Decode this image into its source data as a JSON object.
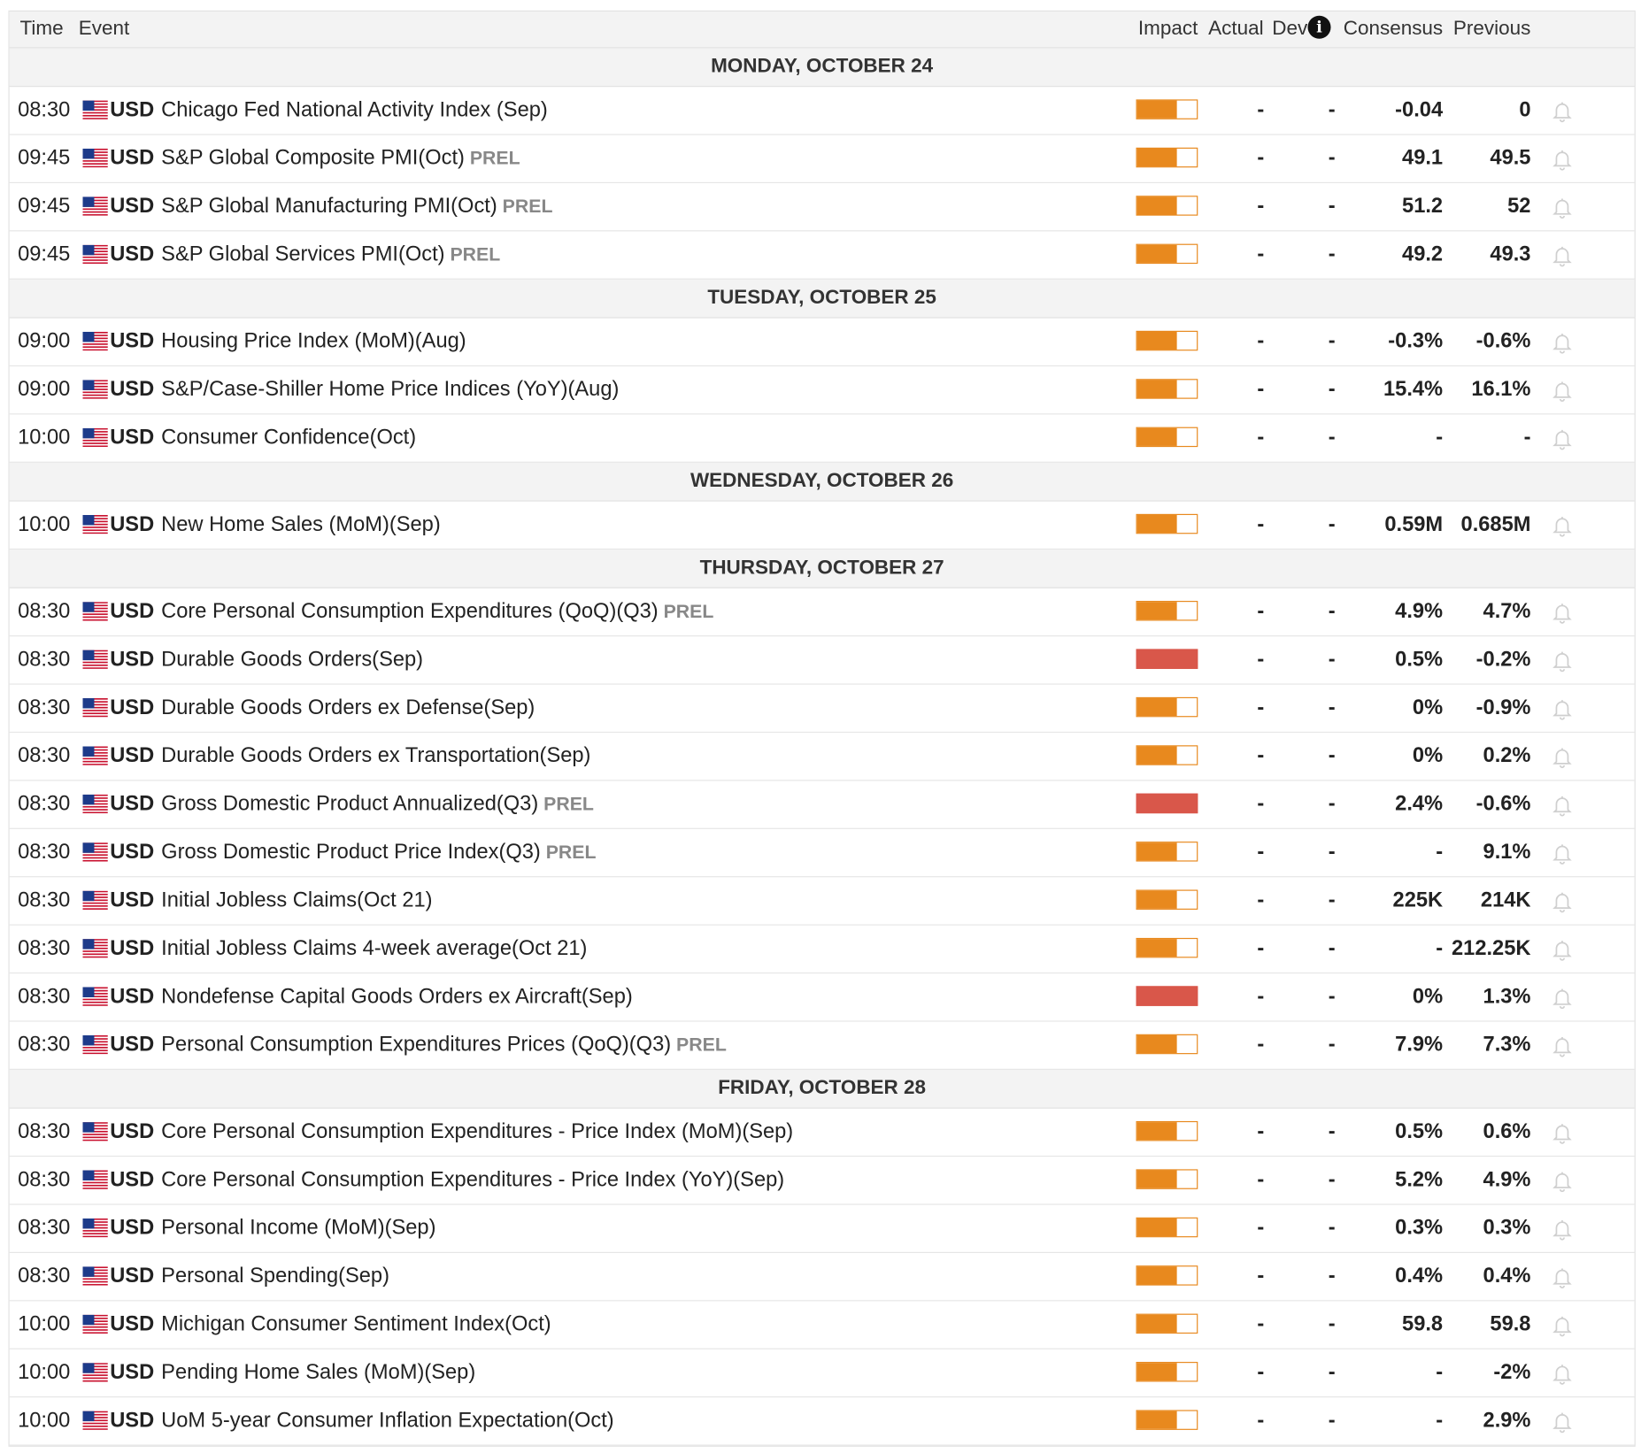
{
  "header": {
    "time": "Time",
    "event": "Event",
    "impact": "Impact",
    "actual": "Actual",
    "dev": "Dev",
    "info_glyph": "i",
    "consensus": "Consensus",
    "previous": "Previous"
  },
  "colors": {
    "medium_impact": "#e8891e",
    "high_impact": "#d9574a"
  },
  "days": [
    {
      "label": "MONDAY, OCTOBER 24",
      "events": [
        {
          "time": "08:30",
          "currency": "USD",
          "name": "Chicago Fed National Activity Index (Sep)",
          "tag": "",
          "impact": "medium",
          "actual": "-",
          "dev": "-",
          "consensus": "-0.04",
          "previous": "0"
        },
        {
          "time": "09:45",
          "currency": "USD",
          "name": "S&P Global Composite PMI(Oct)",
          "tag": "PREL",
          "impact": "medium",
          "actual": "-",
          "dev": "-",
          "consensus": "49.1",
          "previous": "49.5"
        },
        {
          "time": "09:45",
          "currency": "USD",
          "name": "S&P Global Manufacturing PMI(Oct)",
          "tag": "PREL",
          "impact": "medium",
          "actual": "-",
          "dev": "-",
          "consensus": "51.2",
          "previous": "52"
        },
        {
          "time": "09:45",
          "currency": "USD",
          "name": "S&P Global Services PMI(Oct)",
          "tag": "PREL",
          "impact": "medium",
          "actual": "-",
          "dev": "-",
          "consensus": "49.2",
          "previous": "49.3"
        }
      ]
    },
    {
      "label": "TUESDAY, OCTOBER 25",
      "events": [
        {
          "time": "09:00",
          "currency": "USD",
          "name": "Housing Price Index (MoM)(Aug)",
          "tag": "",
          "impact": "medium",
          "actual": "-",
          "dev": "-",
          "consensus": "-0.3%",
          "previous": "-0.6%"
        },
        {
          "time": "09:00",
          "currency": "USD",
          "name": "S&P/Case-Shiller Home Price Indices (YoY)(Aug)",
          "tag": "",
          "impact": "medium",
          "actual": "-",
          "dev": "-",
          "consensus": "15.4%",
          "previous": "16.1%"
        },
        {
          "time": "10:00",
          "currency": "USD",
          "name": "Consumer Confidence(Oct)",
          "tag": "",
          "impact": "medium",
          "actual": "-",
          "dev": "-",
          "consensus": "-",
          "previous": "-"
        }
      ]
    },
    {
      "label": "WEDNESDAY, OCTOBER 26",
      "events": [
        {
          "time": "10:00",
          "currency": "USD",
          "name": "New Home Sales (MoM)(Sep)",
          "tag": "",
          "impact": "medium",
          "actual": "-",
          "dev": "-",
          "consensus": "0.59M",
          "previous": "0.685M"
        }
      ]
    },
    {
      "label": "THURSDAY, OCTOBER 27",
      "events": [
        {
          "time": "08:30",
          "currency": "USD",
          "name": "Core Personal Consumption Expenditures (QoQ)(Q3)",
          "tag": "PREL",
          "impact": "medium",
          "actual": "-",
          "dev": "-",
          "consensus": "4.9%",
          "previous": "4.7%"
        },
        {
          "time": "08:30",
          "currency": "USD",
          "name": "Durable Goods Orders(Sep)",
          "tag": "",
          "impact": "high",
          "actual": "-",
          "dev": "-",
          "consensus": "0.5%",
          "previous": "-0.2%"
        },
        {
          "time": "08:30",
          "currency": "USD",
          "name": "Durable Goods Orders ex Defense(Sep)",
          "tag": "",
          "impact": "medium",
          "actual": "-",
          "dev": "-",
          "consensus": "0%",
          "previous": "-0.9%"
        },
        {
          "time": "08:30",
          "currency": "USD",
          "name": "Durable Goods Orders ex Transportation(Sep)",
          "tag": "",
          "impact": "medium",
          "actual": "-",
          "dev": "-",
          "consensus": "0%",
          "previous": "0.2%"
        },
        {
          "time": "08:30",
          "currency": "USD",
          "name": "Gross Domestic Product Annualized(Q3)",
          "tag": "PREL",
          "impact": "high",
          "actual": "-",
          "dev": "-",
          "consensus": "2.4%",
          "previous": "-0.6%"
        },
        {
          "time": "08:30",
          "currency": "USD",
          "name": "Gross Domestic Product Price Index(Q3)",
          "tag": "PREL",
          "impact": "medium",
          "actual": "-",
          "dev": "-",
          "consensus": "-",
          "previous": "9.1%"
        },
        {
          "time": "08:30",
          "currency": "USD",
          "name": "Initial Jobless Claims(Oct 21)",
          "tag": "",
          "impact": "medium",
          "actual": "-",
          "dev": "-",
          "consensus": "225K",
          "previous": "214K"
        },
        {
          "time": "08:30",
          "currency": "USD",
          "name": "Initial Jobless Claims 4-week average(Oct 21)",
          "tag": "",
          "impact": "medium",
          "actual": "-",
          "dev": "-",
          "consensus": "-",
          "previous": "212.25K"
        },
        {
          "time": "08:30",
          "currency": "USD",
          "name": "Nondefense Capital Goods Orders ex Aircraft(Sep)",
          "tag": "",
          "impact": "high",
          "actual": "-",
          "dev": "-",
          "consensus": "0%",
          "previous": "1.3%"
        },
        {
          "time": "08:30",
          "currency": "USD",
          "name": "Personal Consumption Expenditures Prices (QoQ)(Q3)",
          "tag": "PREL",
          "impact": "medium",
          "actual": "-",
          "dev": "-",
          "consensus": "7.9%",
          "previous": "7.3%"
        }
      ]
    },
    {
      "label": "FRIDAY, OCTOBER 28",
      "events": [
        {
          "time": "08:30",
          "currency": "USD",
          "name": "Core Personal Consumption Expenditures - Price Index (MoM)(Sep)",
          "tag": "",
          "impact": "medium",
          "actual": "-",
          "dev": "-",
          "consensus": "0.5%",
          "previous": "0.6%"
        },
        {
          "time": "08:30",
          "currency": "USD",
          "name": "Core Personal Consumption Expenditures - Price Index (YoY)(Sep)",
          "tag": "",
          "impact": "medium",
          "actual": "-",
          "dev": "-",
          "consensus": "5.2%",
          "previous": "4.9%"
        },
        {
          "time": "08:30",
          "currency": "USD",
          "name": "Personal Income (MoM)(Sep)",
          "tag": "",
          "impact": "medium",
          "actual": "-",
          "dev": "-",
          "consensus": "0.3%",
          "previous": "0.3%"
        },
        {
          "time": "08:30",
          "currency": "USD",
          "name": "Personal Spending(Sep)",
          "tag": "",
          "impact": "medium",
          "actual": "-",
          "dev": "-",
          "consensus": "0.4%",
          "previous": "0.4%"
        },
        {
          "time": "10:00",
          "currency": "USD",
          "name": "Michigan Consumer Sentiment Index(Oct)",
          "tag": "",
          "impact": "medium",
          "actual": "-",
          "dev": "-",
          "consensus": "59.8",
          "previous": "59.8"
        },
        {
          "time": "10:00",
          "currency": "USD",
          "name": "Pending Home Sales (MoM)(Sep)",
          "tag": "",
          "impact": "medium",
          "actual": "-",
          "dev": "-",
          "consensus": "-",
          "previous": "-2%"
        },
        {
          "time": "10:00",
          "currency": "USD",
          "name": "UoM 5-year Consumer Inflation Expectation(Oct)",
          "tag": "",
          "impact": "medium",
          "actual": "-",
          "dev": "-",
          "consensus": "-",
          "previous": "2.9%"
        }
      ]
    }
  ]
}
